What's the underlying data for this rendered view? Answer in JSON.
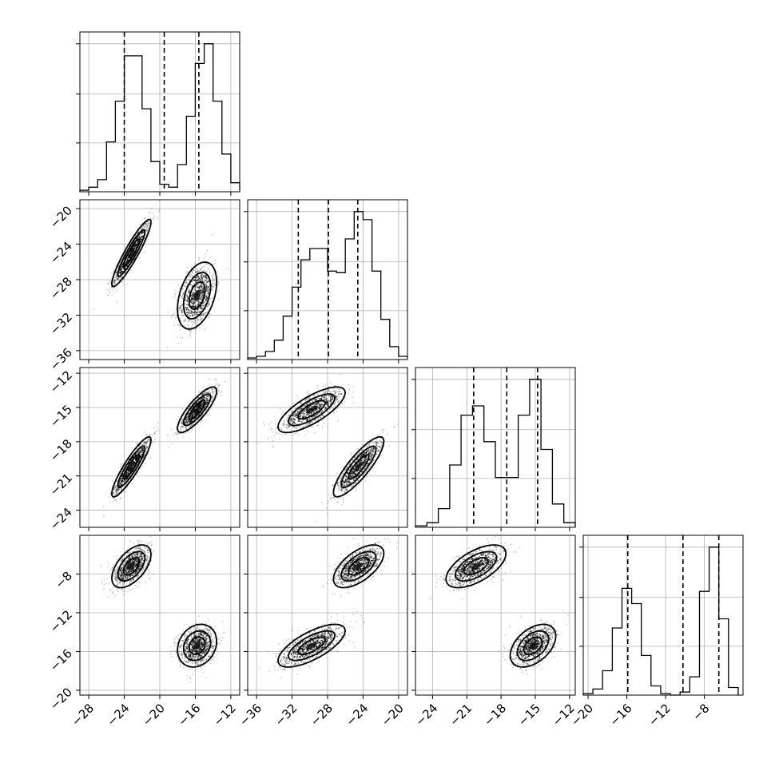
{
  "chart_data": {
    "type": "corner",
    "parameters": [
      {
        "range": [
          -29,
          -11
        ],
        "ticks": [
          -28,
          -24,
          -20,
          -16,
          -12
        ],
        "tick_labels": [
          "−28",
          "−24",
          "−20",
          "−16",
          "−12"
        ],
        "quantiles": [
          -24.0,
          -19.5,
          -15.6
        ],
        "modes": [
          {
            "mean": -23.2,
            "sd": 1.05,
            "weight": 0.5
          },
          {
            "mean": -15.8,
            "sd": 1.05,
            "weight": 0.5
          }
        ],
        "hist_bins": [
          -29,
          -28,
          -27,
          -26,
          -25,
          -24,
          -23,
          -22,
          -21,
          -20,
          -19,
          -18,
          -17,
          -16,
          -15,
          -14,
          -13,
          -12,
          -11
        ],
        "hist_counts": [
          0.01,
          0.03,
          0.08,
          0.33,
          0.6,
          0.9,
          0.9,
          0.55,
          0.2,
          0.05,
          0.03,
          0.18,
          0.5,
          0.85,
          0.98,
          0.6,
          0.25,
          0.06,
          0.01
        ]
      },
      {
        "range": [
          -37,
          -19
        ],
        "ticks": [
          -36,
          -32,
          -28,
          -24,
          -20
        ],
        "tick_labels": [
          "−36",
          "−32",
          "−28",
          "−24",
          "−20"
        ],
        "quantiles": [
          -31.3,
          -27.9,
          -24.6
        ],
        "modes": [
          {
            "mean": -29.8,
            "sd": 1.8,
            "weight": 0.5
          },
          {
            "mean": -24.5,
            "sd": 1.35,
            "weight": 0.5
          }
        ],
        "hist_bins": [
          -37,
          -36,
          -35,
          -34,
          -33,
          -32,
          -31,
          -30,
          -29,
          -28,
          -27,
          -26,
          -25,
          -24,
          -23,
          -22,
          -21,
          -20,
          -19
        ],
        "hist_counts": [
          0.01,
          0.02,
          0.05,
          0.12,
          0.27,
          0.45,
          0.62,
          0.69,
          0.69,
          0.55,
          0.54,
          0.75,
          0.92,
          0.87,
          0.55,
          0.25,
          0.08,
          0.02,
          0.01
        ]
      },
      {
        "range": [
          -25.5,
          -11.5
        ],
        "ticks": [
          -24,
          -21,
          -18,
          -15,
          -12
        ],
        "tick_labels": [
          "−24",
          "−21",
          "−18",
          "−15",
          "−12"
        ],
        "quantiles": [
          -20.4,
          -17.5,
          -14.8
        ],
        "modes": [
          {
            "mean": -20.2,
            "sd": 1.25,
            "weight": 0.5
          },
          {
            "mean": -15.2,
            "sd": 0.95,
            "weight": 0.5
          }
        ],
        "hist_bins": [
          -25.5,
          -24.5,
          -23.5,
          -22.5,
          -21.5,
          -20.5,
          -19.5,
          -18.5,
          -17.5,
          -16.5,
          -15.5,
          -14.5,
          -13.5,
          -12.5,
          -11.5
        ],
        "hist_counts": [
          0.01,
          0.03,
          0.12,
          0.4,
          0.72,
          0.78,
          0.55,
          0.32,
          0.32,
          0.72,
          0.95,
          0.5,
          0.15,
          0.03
        ]
      },
      {
        "range": [
          -20.5,
          -4
        ],
        "ticks": [
          -20,
          -16,
          -12,
          -8
        ],
        "tick_labels": [
          "−20",
          "−16",
          "−12",
          "−8"
        ],
        "quantiles": [
          -15.9,
          -10.2,
          -6.5
        ],
        "modes": [
          {
            "mean": -15.4,
            "sd": 1.05,
            "weight": 0.5
          },
          {
            "mean": -6.8,
            "sd": 0.45,
            "weight": 0.5
          }
        ],
        "hist_bins": [
          -20.5,
          -19.5,
          -18.5,
          -17.5,
          -16.5,
          -15.5,
          -14.5,
          -13.5,
          -12.5,
          -11.5,
          -10.5,
          -9.5,
          -8.5,
          -7.5,
          -6.5,
          -5.5,
          -4.5
        ],
        "hist_counts": [
          0.01,
          0.04,
          0.16,
          0.44,
          0.7,
          0.6,
          0.26,
          0.06,
          0.01,
          0.0,
          0.02,
          0.12,
          0.68,
          0.97,
          0.5,
          0.05
        ]
      }
    ],
    "pair_clusters": [
      {
        "i": 1,
        "j": 0,
        "clusters": [
          {
            "cx": -23.2,
            "cy": -25.0,
            "rho": 0.92
          },
          {
            "cx": -15.8,
            "cy": -29.8,
            "rho": 0.4
          }
        ]
      },
      {
        "i": 2,
        "j": 0,
        "clusters": [
          {
            "cx": -23.2,
            "cy": -20.2,
            "rho": 0.9
          },
          {
            "cx": -15.8,
            "cy": -15.2,
            "rho": 0.82
          }
        ]
      },
      {
        "i": 2,
        "j": 1,
        "clusters": [
          {
            "cx": -29.8,
            "cy": -15.2,
            "rho": 0.75
          },
          {
            "cx": -24.5,
            "cy": -20.2,
            "rho": 0.85
          }
        ]
      },
      {
        "i": 3,
        "j": 0,
        "clusters": [
          {
            "cx": -23.2,
            "cy": -7.2,
            "rho": 0.55
          },
          {
            "cx": -15.8,
            "cy": -15.4,
            "rho": 0.2
          }
        ]
      },
      {
        "i": 3,
        "j": 1,
        "clusters": [
          {
            "cx": -24.5,
            "cy": -7.2,
            "rho": 0.6
          },
          {
            "cx": -29.8,
            "cy": -15.4,
            "rho": 0.7
          }
        ]
      },
      {
        "i": 3,
        "j": 2,
        "clusters": [
          {
            "cx": -20.2,
            "cy": -7.2,
            "rho": 0.6
          },
          {
            "cx": -15.2,
            "cy": -15.4,
            "rho": 0.45
          }
        ]
      }
    ],
    "grid": true
  }
}
